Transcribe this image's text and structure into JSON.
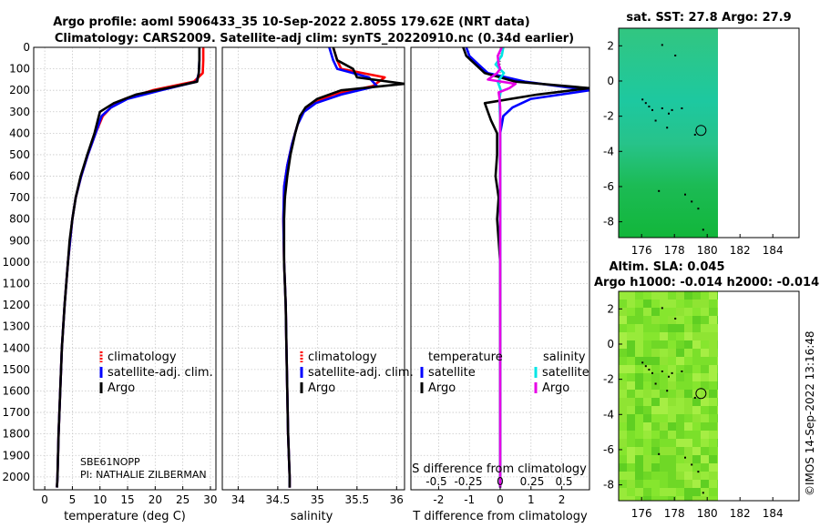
{
  "header": {
    "line1": "Argo profile: aoml 5906433_35 10-Sep-2022 2.805S 179.62E (NRT data)",
    "line2": "Climatology: CARS2009. Satellite-adj clim: synTS_20220910.nc (0.34d earlier)"
  },
  "map_titles": {
    "sst": "sat. SST: 27.8 Argo: 27.9",
    "sla1": "Altim. SLA: 0.045",
    "sla2": "Argo h1000: -0.014 h2000: -0.014"
  },
  "footer": {
    "imos": "©IMOS 14-Sep-2022 13:16:48",
    "sensor": "SBE61NOPP",
    "pi": "PI: NATHALIE ZILBERMAN"
  },
  "colors": {
    "climatology": "#ff0000",
    "satellite": "#0000ff",
    "argo": "#000000",
    "sal_satellite": "#00e5e5",
    "sal_argo": "#e600e6"
  },
  "chart_data": [
    {
      "type": "line",
      "id": "temperature",
      "xlabel": "temperature (deg C)",
      "ylabel": "",
      "xlim": [
        -2,
        31
      ],
      "ylim": [
        2060,
        0
      ],
      "xticks": [
        0,
        5,
        10,
        15,
        20,
        25,
        30
      ],
      "yticks": [
        0,
        100,
        200,
        300,
        400,
        500,
        600,
        700,
        800,
        900,
        1000,
        1100,
        1200,
        1300,
        1400,
        1500,
        1600,
        1700,
        1800,
        1900,
        2000
      ],
      "grid": true,
      "legend": [
        "climatology",
        "satellite-adj. clim.",
        "Argo"
      ],
      "series": [
        {
          "name": "climatology",
          "color": "#ff0000",
          "depth": [
            0,
            60,
            120,
            160,
            200,
            240,
            280,
            320,
            400,
            500,
            600,
            700,
            800,
            900,
            1000,
            1200,
            1400,
            1600,
            1800,
            2000,
            2050
          ],
          "values": [
            28.7,
            28.7,
            28.6,
            27.0,
            19.5,
            14.5,
            12.0,
            10.5,
            9.2,
            7.8,
            6.6,
            5.6,
            5.0,
            4.6,
            4.2,
            3.6,
            3.1,
            2.8,
            2.5,
            2.3,
            2.2
          ]
        },
        {
          "name": "satellite-adj. clim.",
          "color": "#0000ff",
          "depth": [
            0,
            60,
            120,
            160,
            200,
            240,
            280,
            320,
            400,
            500,
            600,
            700,
            800,
            900,
            1000,
            1200,
            1400,
            1600,
            1800,
            2000,
            2050
          ],
          "values": [
            28.0,
            28.0,
            27.9,
            27.5,
            21.0,
            15.0,
            12.0,
            10.3,
            9.2,
            7.8,
            6.6,
            5.6,
            5.0,
            4.6,
            4.2,
            3.6,
            3.1,
            2.8,
            2.5,
            2.3,
            2.2
          ]
        },
        {
          "name": "Argo",
          "color": "#000000",
          "depth": [
            0,
            60,
            120,
            160,
            180,
            220,
            260,
            300,
            340,
            400,
            500,
            600,
            700,
            800,
            900,
            1000,
            1200,
            1400,
            1600,
            1800,
            2000,
            2050
          ],
          "values": [
            28.0,
            28.0,
            27.9,
            27.6,
            24.0,
            16.5,
            12.5,
            10.0,
            9.6,
            9.0,
            7.7,
            6.5,
            5.6,
            5.0,
            4.5,
            4.2,
            3.6,
            3.1,
            2.8,
            2.5,
            2.3,
            2.2
          ]
        }
      ]
    },
    {
      "type": "line",
      "id": "salinity",
      "xlabel": "salinity",
      "xlim": [
        33.8,
        36.1
      ],
      "ylim": [
        2060,
        0
      ],
      "xticks": [
        34,
        34.5,
        35,
        35.5,
        36
      ],
      "xtick_labels": [
        "34",
        "34.5",
        "35",
        "35.5",
        "36"
      ],
      "grid": true,
      "legend": [
        "climatology",
        "satellite-adj. clim.",
        "Argo"
      ],
      "series": [
        {
          "name": "climatology",
          "color": "#ff0000",
          "depth": [
            0,
            60,
            100,
            140,
            180,
            220,
            260,
            300,
            360,
            450,
            550,
            650,
            800,
            1000,
            1200,
            1400,
            1600,
            1800,
            2000,
            2050
          ],
          "values": [
            35.2,
            35.25,
            35.3,
            35.85,
            35.7,
            35.2,
            34.95,
            34.82,
            34.75,
            34.68,
            34.62,
            34.58,
            34.57,
            34.58,
            34.6,
            34.61,
            34.62,
            34.63,
            34.65,
            34.65
          ]
        },
        {
          "name": "satellite-adj. clim.",
          "color": "#0000ff",
          "depth": [
            0,
            60,
            100,
            140,
            180,
            220,
            260,
            300,
            360,
            450,
            550,
            650,
            800,
            1000,
            1200,
            1400,
            1600,
            1800,
            2000,
            2050
          ],
          "values": [
            35.15,
            35.2,
            35.25,
            35.65,
            35.75,
            35.3,
            34.98,
            34.83,
            34.75,
            34.68,
            34.62,
            34.58,
            34.57,
            34.58,
            34.6,
            34.61,
            34.62,
            34.63,
            34.65,
            34.65
          ]
        },
        {
          "name": "Argo",
          "color": "#000000",
          "depth": [
            0,
            60,
            100,
            140,
            170,
            200,
            240,
            280,
            320,
            400,
            500,
            600,
            700,
            800,
            1000,
            1200,
            1400,
            1600,
            1800,
            2000,
            2050
          ],
          "values": [
            35.2,
            35.25,
            35.45,
            35.5,
            36.1,
            35.3,
            35.0,
            34.85,
            34.78,
            34.72,
            34.66,
            34.62,
            34.59,
            34.58,
            34.58,
            34.6,
            34.61,
            34.62,
            34.63,
            34.65,
            34.65
          ]
        }
      ]
    },
    {
      "type": "line",
      "id": "difference",
      "xlabel": "T difference from climatology",
      "top_label": "S difference from climatology",
      "xlim": [
        -2.9,
        2.9
      ],
      "ylim": [
        2060,
        0
      ],
      "xticks": [
        -2,
        -1,
        0,
        1,
        2
      ],
      "top_ticks": [
        -0.5,
        -0.25,
        0,
        0.25,
        0.5
      ],
      "top_tick_labels": [
        "-0.5",
        "-0.25",
        "0",
        "0.25",
        "0.5"
      ],
      "grid": true,
      "legend_temperature": {
        "title": "temperature",
        "items": [
          "satellite",
          "Argo"
        ]
      },
      "legend_salinity": {
        "title": "salinity",
        "items": [
          "satellite",
          "Argo"
        ]
      },
      "series": [
        {
          "name": "temperature satellite",
          "color": "#0000ff",
          "depth": [
            0,
            40,
            80,
            120,
            160,
            200,
            240,
            280,
            320,
            400,
            600,
            800,
            1000,
            1400,
            1800,
            2050
          ],
          "values": [
            -1.1,
            -1.0,
            -0.7,
            -0.4,
            0.8,
            2.9,
            1.0,
            0.4,
            0.1,
            0.0,
            0.0,
            0.0,
            0.0,
            0.0,
            0.0,
            0.0
          ]
        },
        {
          "name": "temperature Argo",
          "color": "#000000",
          "depth": [
            0,
            40,
            80,
            120,
            160,
            190,
            220,
            260,
            300,
            340,
            400,
            500,
            600,
            700,
            800,
            900,
            1000,
            1400,
            1800,
            2050
          ],
          "values": [
            -1.2,
            -1.1,
            -0.8,
            -0.5,
            0.5,
            2.9,
            1.2,
            -0.5,
            -0.4,
            -0.3,
            -0.1,
            -0.1,
            -0.15,
            -0.05,
            -0.1,
            -0.05,
            0.0,
            0.0,
            0.0,
            0.0
          ]
        },
        {
          "name": "salinity satellite",
          "color": "#00e5e5",
          "depth": [
            0,
            40,
            80,
            120,
            160,
            200,
            240,
            280,
            340,
            400,
            600,
            800,
            1000,
            1400,
            1800,
            2050
          ],
          "values": [
            0.1,
            0.05,
            -0.15,
            0.12,
            -0.08,
            0.02,
            -0.02,
            -0.02,
            0.0,
            0.0,
            0.0,
            0.0,
            0.0,
            0.0,
            0.0,
            0.0
          ]
        },
        {
          "name": "salinity Argo",
          "color": "#e600e6",
          "depth": [
            0,
            40,
            80,
            100,
            120,
            150,
            170,
            190,
            210,
            240,
            280,
            320,
            400,
            600,
            800,
            1000,
            1400,
            1800,
            2050
          ],
          "values": [
            0.05,
            -0.08,
            -0.05,
            0.0,
            -0.1,
            -0.4,
            0.5,
            0.3,
            -0.05,
            -0.02,
            0.0,
            0.0,
            0.0,
            0.0,
            0.0,
            0.0,
            0.0,
            0.0,
            0.0
          ]
        }
      ]
    },
    {
      "type": "heatmap",
      "id": "sst_map",
      "title": "sat. SST: 27.8 Argo: 27.9",
      "xlim": [
        174.6,
        185.6
      ],
      "ylim": [
        -8.9,
        3.0
      ],
      "xticks": [
        176,
        178,
        180,
        182,
        184
      ],
      "yticks": [
        2,
        0,
        -2,
        -4,
        -6,
        -8
      ],
      "data_extent_lon": [
        174.6,
        180.0
      ],
      "argo_position": [
        179.62,
        -2.805
      ]
    },
    {
      "type": "heatmap",
      "id": "sla_map",
      "title": "Altim. SLA: 0.045",
      "xlim": [
        174.6,
        185.6
      ],
      "ylim": [
        -8.9,
        3.0
      ],
      "xticks": [
        176,
        178,
        180,
        182,
        184
      ],
      "yticks": [
        2,
        0,
        -2,
        -4,
        -6,
        -8
      ],
      "data_extent_lon": [
        174.6,
        180.0
      ],
      "argo_position": [
        179.62,
        -2.805
      ]
    }
  ]
}
